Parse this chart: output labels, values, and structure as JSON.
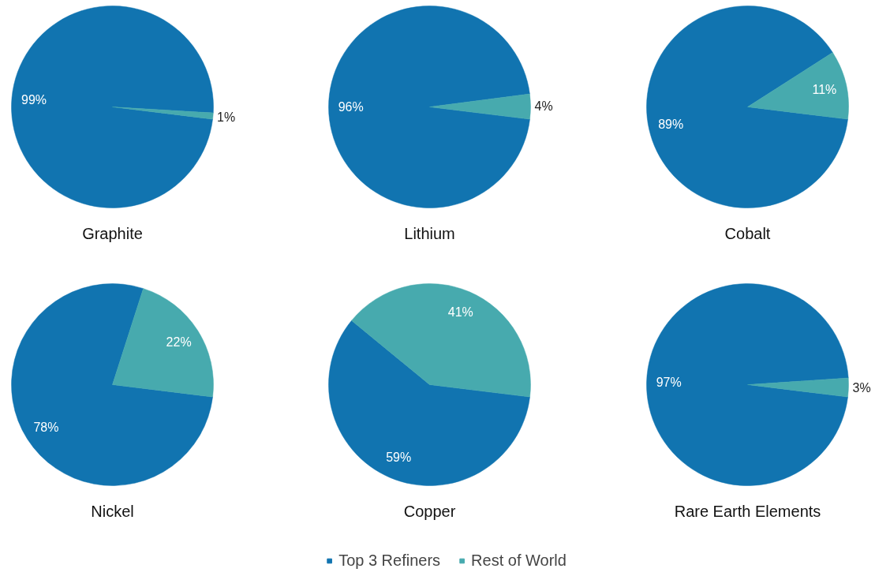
{
  "chart_data": [
    {
      "type": "pie",
      "title": "Graphite",
      "categories": [
        "Top 3 Refiners",
        "Rest of World"
      ],
      "values": [
        99,
        1
      ],
      "colors": [
        "#1174b0",
        "#47aaae"
      ],
      "value_labels": [
        "99%",
        "1%"
      ],
      "legend": "bottom"
    },
    {
      "type": "pie",
      "title": "Lithium",
      "categories": [
        null,
        null
      ],
      "values": [
        96,
        4
      ],
      "colors": [
        "#1174b0",
        "#47aaae"
      ],
      "value_labels": [
        "96%",
        "4%"
      ]
    },
    {
      "type": "pie",
      "title": "Cobalt",
      "categories": [
        null,
        null
      ],
      "values": [
        89,
        11
      ],
      "colors": [
        "#1174b0",
        "#47aaae"
      ],
      "value_labels": [
        "89%",
        "11%"
      ]
    },
    {
      "type": "pie",
      "title": "Nickel",
      "categories": [
        null,
        null
      ],
      "values": [
        78,
        22
      ],
      "colors": [
        "#1174b0",
        "#47aaae"
      ],
      "value_labels": [
        "78%",
        "22%"
      ]
    },
    {
      "type": "pie",
      "title": "Copper",
      "categories": [
        null,
        null
      ],
      "values": [
        59,
        41
      ],
      "colors": [
        "#1174b0",
        "#47aaae"
      ],
      "value_labels": [
        "59%",
        "41%"
      ]
    },
    {
      "type": "pie",
      "title": "Rare Earth Elements",
      "categories": [
        null,
        null
      ],
      "values": [
        97,
        3
      ],
      "colors": [
        "#1174b0",
        "#47aaae"
      ],
      "value_labels": [
        "97%",
        "3%"
      ]
    }
  ]
}
